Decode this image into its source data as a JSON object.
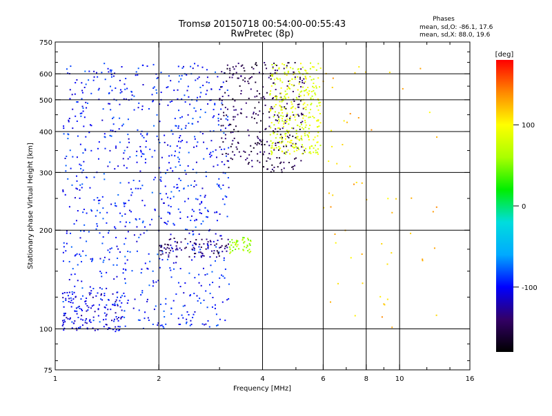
{
  "chart_data": {
    "type": "scatter",
    "title": "Tromsø 20150718 00:54:00-00:55:43",
    "subtitle": "RwPretec (8p)",
    "xlabel": "Frequency [MHz]",
    "ylabel": "Stationary phase Virtual Height [km]",
    "xscale": "log",
    "yscale": "log",
    "xlim": [
      1,
      16
    ],
    "ylim": [
      75,
      750
    ],
    "x_ticks": [
      1,
      2,
      4,
      6,
      8,
      10,
      16
    ],
    "x_tick_labels": [
      "1",
      "2",
      "4",
      "6",
      "8",
      "10",
      "16"
    ],
    "x_minor_ticks": [
      3,
      5,
      7,
      9,
      12,
      14
    ],
    "x_gridlines": [
      2,
      4,
      6,
      8,
      10
    ],
    "y_ticks": [
      75,
      100,
      200,
      300,
      400,
      500,
      600,
      750
    ],
    "y_tick_labels": [
      "75",
      "100",
      "200",
      "300",
      "400",
      "500",
      "600",
      "750"
    ],
    "y_minor_ticks": [
      80,
      90,
      125,
      150,
      175,
      250,
      350,
      450,
      550,
      650,
      700
    ],
    "y_gridlines": [
      100,
      200,
      300,
      400,
      500,
      600
    ],
    "grid": true,
    "legend_note": {
      "heading": "Phases",
      "line1": "mean, sd,O: -86.1, 17.6",
      "line2": "mean, sd,X: 88.0, 19.6"
    },
    "colorbar": {
      "label": "[deg]",
      "range": [
        -180,
        180
      ],
      "ticks": [
        100,
        0,
        -100
      ],
      "tick_labels": [
        "100",
        "0",
        "-100"
      ],
      "colors": [
        "#000000",
        "#330066",
        "#0000ff",
        "#00aaff",
        "#00dddd",
        "#00ee00",
        "#aaff00",
        "#ffff00",
        "#ff8800",
        "#ff0000"
      ]
    },
    "traces": [
      {
        "name": "blue spread F",
        "phase": -95,
        "x_range": [
          1.05,
          3.2
        ],
        "y_range": [
          100,
          650
        ]
      },
      {
        "name": "purple O-trace upper",
        "phase": -150,
        "x_range": [
          3.0,
          5.3
        ],
        "y_range": [
          300,
          650
        ]
      },
      {
        "name": "yellow X-trace",
        "phase": 85,
        "x_range": [
          4.2,
          5.9
        ],
        "y_range": [
          340,
          650
        ]
      },
      {
        "name": "E-layer trace",
        "phase": -110,
        "x_range": [
          1.05,
          1.6
        ],
        "y_range": [
          98,
          130
        ]
      },
      {
        "name": "F1 trace",
        "phase": -140,
        "x_range": [
          2.0,
          3.2
        ],
        "y_range": [
          165,
          190
        ]
      },
      {
        "name": "green F1 X-trace",
        "phase": 60,
        "x_range": [
          3.2,
          3.7
        ],
        "y_range": [
          170,
          190
        ]
      },
      {
        "name": "scattered echoes",
        "phase": 120,
        "x_range": [
          6.0,
          13.0
        ],
        "y_range": [
          100,
          650
        ]
      }
    ]
  }
}
